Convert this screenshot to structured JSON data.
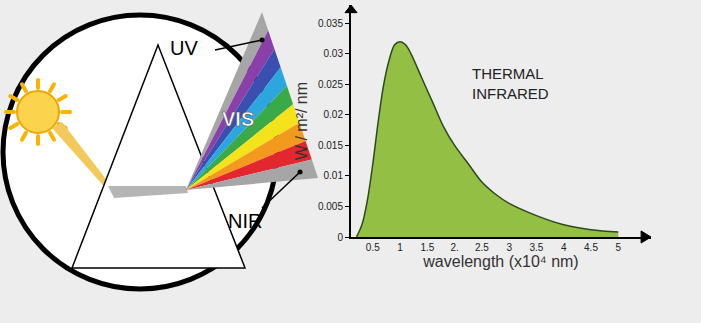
{
  "chart_data": {
    "type": "area",
    "x": [
      0.2,
      0.3,
      0.4,
      0.5,
      0.6,
      0.7,
      0.8,
      0.9,
      1.0,
      1.1,
      1.2,
      1.4,
      1.6,
      1.8,
      2.0,
      2.25,
      2.5,
      2.75,
      3.0,
      3.5,
      4.0,
      4.5,
      5.0
    ],
    "values": [
      0,
      0.002,
      0.006,
      0.012,
      0.019,
      0.025,
      0.029,
      0.0315,
      0.032,
      0.0315,
      0.03,
      0.026,
      0.022,
      0.018,
      0.015,
      0.012,
      0.009,
      0.007,
      0.0055,
      0.0035,
      0.002,
      0.0012,
      0.0008
    ],
    "color": "#93bf45",
    "x_label": "wavelength (x10⁴ nm)",
    "y_label": "W / m²/ nm",
    "annotation": [
      "THERMAL",
      "INFRARED"
    ],
    "xlim": [
      0.1,
      5.6
    ],
    "xticks": [
      0.5,
      1,
      1.5,
      {
        "value": 2,
        "label": "2."
      },
      2.5,
      3,
      3.5,
      4,
      4.5,
      5
    ],
    "ylim": [
      0,
      0.038
    ],
    "yticks": [
      0,
      0.005,
      0.01,
      0.015,
      0.02,
      0.025,
      0.03,
      0.035
    ],
    "grid": false
  },
  "diagram": {
    "labels": {
      "uv": "UV",
      "vis": "VIS",
      "nir": "NIR"
    }
  }
}
